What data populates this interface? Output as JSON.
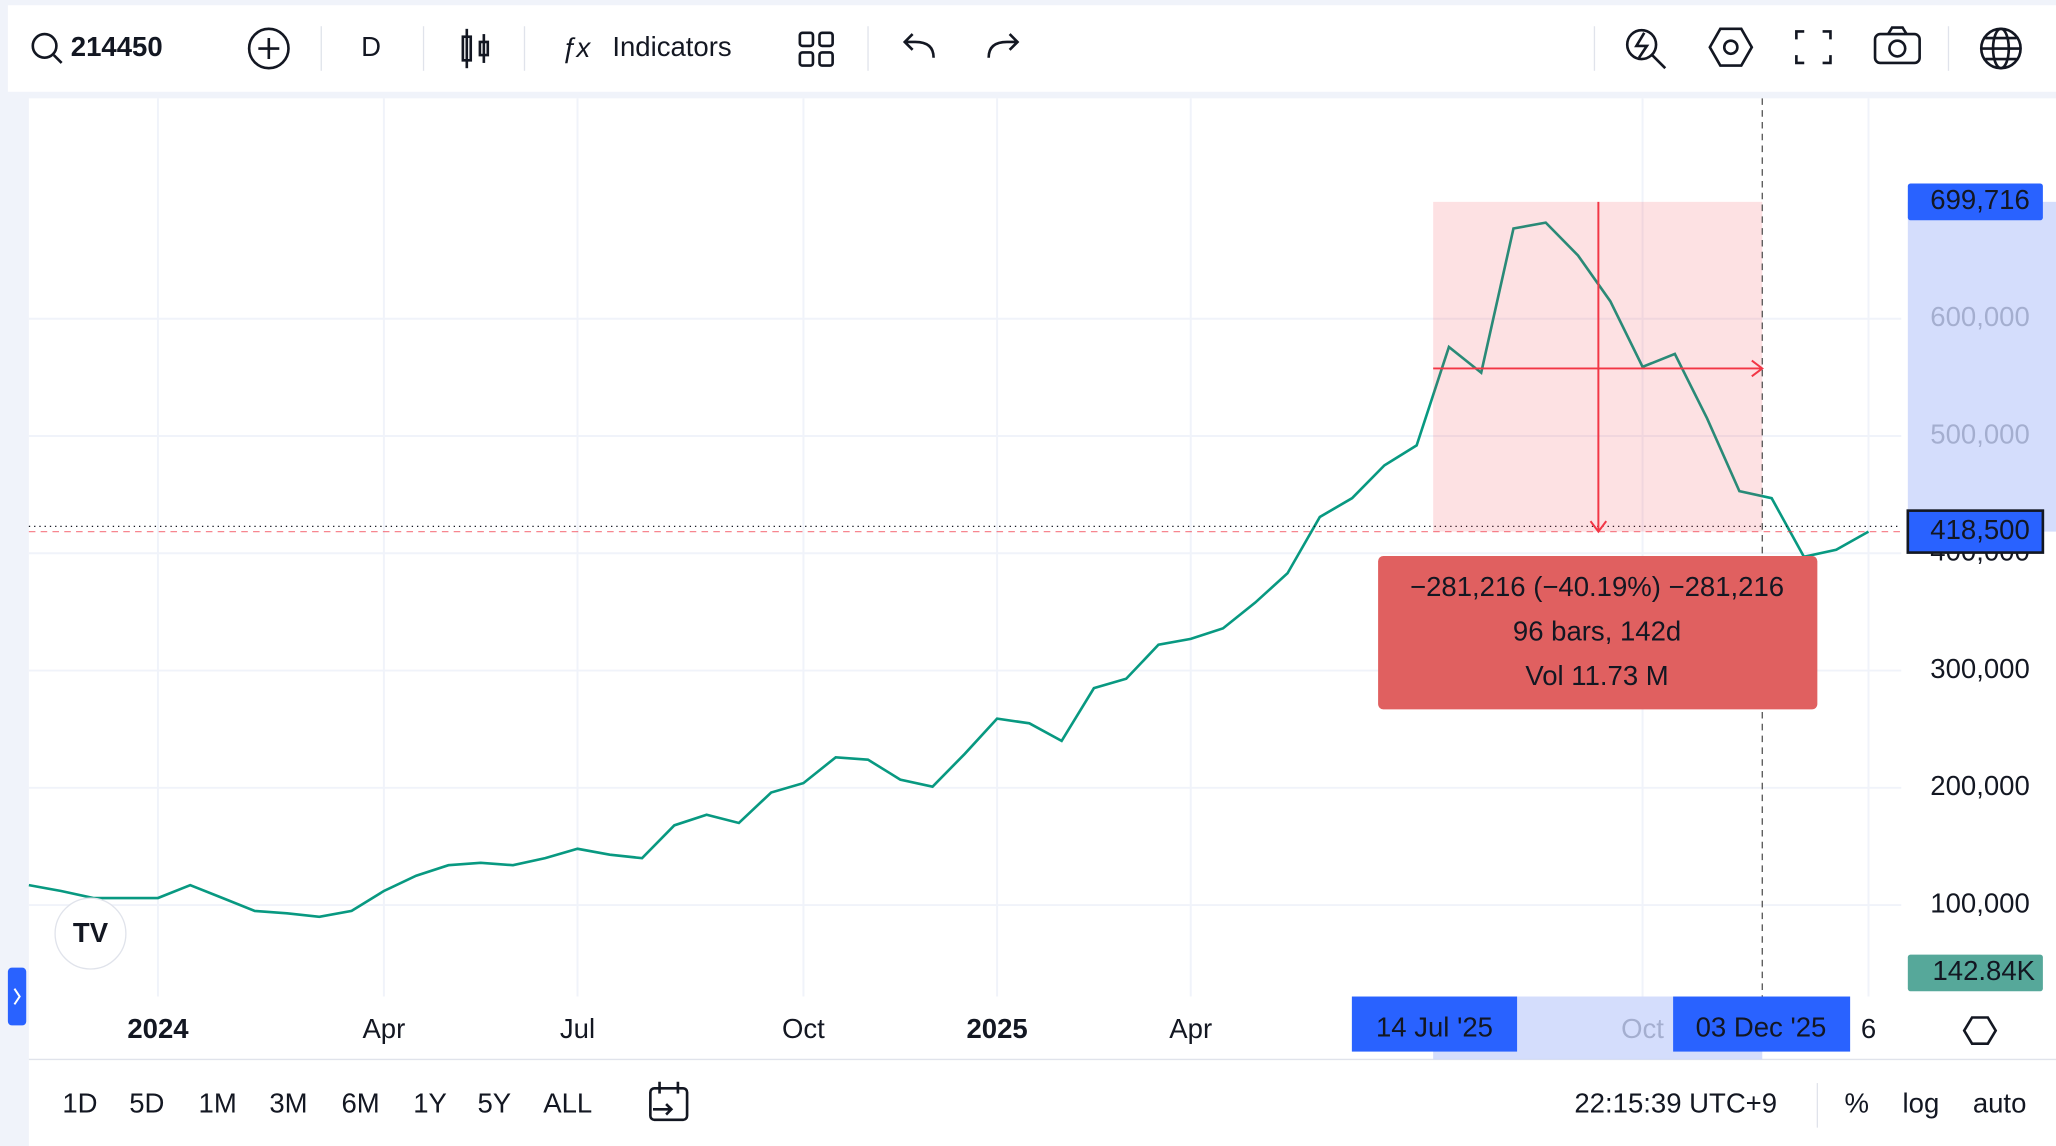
{
  "toolbar": {
    "symbol": "214450",
    "interval": "D",
    "indicators": "Indicators"
  },
  "chart_data": {
    "type": "line",
    "categories": [
      null,
      null,
      null,
      null,
      "2024",
      null,
      null,
      null,
      null,
      null,
      null,
      "Apr",
      null,
      null,
      null,
      null,
      null,
      "Jul",
      null,
      null,
      null,
      null,
      null,
      null,
      "Oct",
      null,
      null,
      null,
      null,
      null,
      "2025",
      null,
      null,
      null,
      null,
      null,
      "Apr",
      null,
      null,
      null,
      null,
      null,
      null,
      null,
      null,
      null,
      null,
      null,
      null,
      null,
      "Oct",
      null,
      null,
      null,
      null,
      null,
      null,
      "6"
    ],
    "values": [
      117000,
      112000,
      106000,
      106000,
      106000,
      117000,
      106000,
      95000,
      93000,
      90000,
      95000,
      112000,
      125000,
      134000,
      136000,
      134000,
      140000,
      148000,
      143000,
      140000,
      168000,
      177000,
      170000,
      196000,
      204000,
      226000,
      224000,
      207000,
      201000,
      229000,
      259000,
      255000,
      240000,
      285000,
      293000,
      322000,
      327000,
      336000,
      358000,
      383000,
      431000,
      447000,
      475000,
      492000,
      576000,
      554000,
      677000,
      682000,
      654000,
      615000,
      559000,
      570000,
      515000,
      453000,
      447000,
      397000,
      403000,
      418500
    ],
    "color": "#089981",
    "ylim": [
      22000,
      788000
    ],
    "yticks": [
      {
        "value": 100000,
        "label": "100,000"
      },
      {
        "value": 200000,
        "label": "200,000"
      },
      {
        "value": 300000,
        "label": "300,000"
      },
      {
        "value": 400000,
        "label": "400,000"
      },
      {
        "value": 500000,
        "label": "500,000"
      },
      {
        "value": 600000,
        "label": "600,000"
      }
    ],
    "grid": true
  },
  "price_labels": {
    "high": {
      "value": 699716,
      "label": "699,716"
    },
    "last": {
      "value": 418500,
      "label": "418,500"
    },
    "volume": "142.84K"
  },
  "measure": {
    "change": "−281,216 (−40.19%) −281,216",
    "bars": "96 bars, 142d",
    "volume": "Vol 11.73 M"
  },
  "time_labels": {
    "start": "14 Jul '25",
    "end": "03 Dec '25"
  },
  "bottom_bar": {
    "ranges": [
      "1D",
      "5D",
      "1M",
      "3M",
      "6M",
      "1Y",
      "5Y",
      "ALL"
    ],
    "clock": "22:15:39 UTC+9",
    "percent": "%",
    "log": "log",
    "auto": "auto"
  }
}
